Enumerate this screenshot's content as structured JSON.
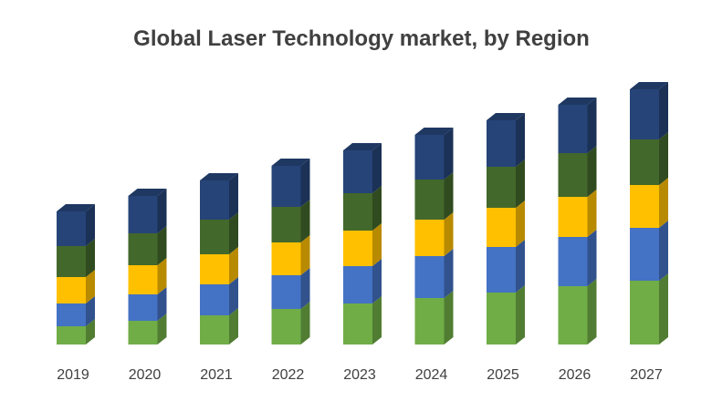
{
  "chart_data": {
    "type": "bar",
    "stacked": true,
    "style": "3d-column",
    "title": "Global Laser Technology market, by Region",
    "xlabel": "",
    "ylabel": "",
    "y_axis_shown": false,
    "grid": false,
    "legend": "none",
    "categories": [
      "2019",
      "2020",
      "2021",
      "2022",
      "2023",
      "2024",
      "2025",
      "2026",
      "2027"
    ],
    "series": [
      {
        "color": "#70ad47",
        "values": [
          20,
          26,
          32,
          39,
          45,
          51,
          57,
          64,
          70
        ]
      },
      {
        "color": "#4472c4",
        "values": [
          25,
          29,
          34,
          37,
          41,
          46,
          50,
          54,
          58
        ]
      },
      {
        "color": "#ffc000",
        "values": [
          29,
          32,
          33,
          36,
          39,
          40,
          43,
          44,
          47
        ]
      },
      {
        "color": "#43682b",
        "values": [
          34,
          35,
          38,
          39,
          41,
          44,
          45,
          48,
          50
        ]
      },
      {
        "color": "#264478",
        "values": [
          38,
          41,
          43,
          45,
          47,
          49,
          51,
          53,
          55
        ]
      }
    ]
  }
}
